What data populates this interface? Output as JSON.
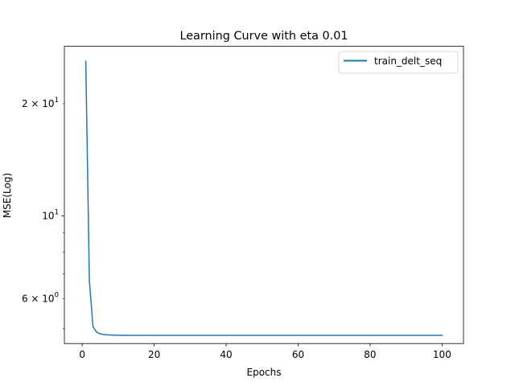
{
  "chart_data": {
    "type": "line",
    "title": "Learning Curve with eta 0.01",
    "xlabel": "Epochs",
    "ylabel": "MSE(Log)",
    "yscale": "log",
    "xlim": [
      -4.95,
      105.95
    ],
    "ylim": [
      4.55,
      28.5
    ],
    "grid": false,
    "legend_position": "top-right",
    "x_ticks": [
      {
        "value": 0,
        "label": "0"
      },
      {
        "value": 20,
        "label": "20"
      },
      {
        "value": 40,
        "label": "40"
      },
      {
        "value": 60,
        "label": "60"
      },
      {
        "value": 80,
        "label": "80"
      },
      {
        "value": 100,
        "label": "100"
      }
    ],
    "y_major_ticks": [
      {
        "value": 10,
        "base": "10",
        "exp": "1",
        "coef": ""
      }
    ],
    "y_minor_ticks": [
      {
        "value": 6,
        "base": "10",
        "exp": "0",
        "coef": "6 × "
      },
      {
        "value": 20,
        "base": "10",
        "exp": "1",
        "coef": "2 × "
      }
    ],
    "y_minor_unlabeled": [
      5,
      7,
      8,
      9
    ],
    "series": [
      {
        "name": "train_delt_seq",
        "color": "#1f77b4",
        "x": [
          1,
          2,
          3,
          4,
          5,
          6,
          7,
          8,
          9,
          10,
          12,
          15,
          20,
          30,
          40,
          50,
          60,
          70,
          80,
          90,
          100
        ],
        "y": [
          26.0,
          6.7,
          5.05,
          4.88,
          4.83,
          4.81,
          4.8,
          4.795,
          4.79,
          4.79,
          4.785,
          4.785,
          4.785,
          4.785,
          4.785,
          4.785,
          4.785,
          4.785,
          4.785,
          4.785,
          4.785
        ]
      }
    ]
  }
}
